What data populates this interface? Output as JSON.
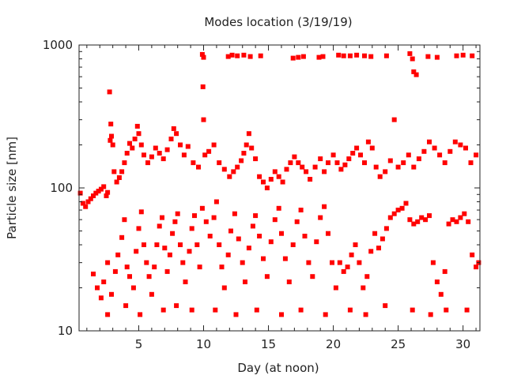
{
  "chart_data": {
    "type": "scatter",
    "title": "Modes location (3/19/19)",
    "xlabel": "Day (at noon)",
    "ylabel": "Particle size [nm]",
    "xlim": [
      0.4,
      31.3
    ],
    "ylim": [
      10,
      1000
    ],
    "yscale": "log",
    "grid": false,
    "legend": "none",
    "marker_color": "#ff0000",
    "x_ticks": [
      {
        "value": 5,
        "label": "5"
      },
      {
        "value": 10,
        "label": "10"
      },
      {
        "value": 15,
        "label": "15"
      },
      {
        "value": 20,
        "label": "20"
      },
      {
        "value": 25,
        "label": "25"
      },
      {
        "value": 30,
        "label": "30"
      }
    ],
    "y_ticks": [
      {
        "value": 10,
        "label": "10"
      },
      {
        "value": 100,
        "label": "100"
      },
      {
        "value": 1000,
        "label": "1000"
      }
    ],
    "series": [
      {
        "values_description_note": "",
        "points": [
          [
            0.5,
            92
          ],
          [
            0.7,
            78
          ],
          [
            0.9,
            74
          ],
          [
            1.1,
            80
          ],
          [
            1.3,
            84
          ],
          [
            1.5,
            88
          ],
          [
            1.7,
            92
          ],
          [
            1.9,
            95
          ],
          [
            2.1,
            98
          ],
          [
            2.3,
            102
          ],
          [
            2.5,
            88
          ],
          [
            2.6,
            93
          ],
          [
            2.75,
            470
          ],
          [
            2.8,
            215
          ],
          [
            2.85,
            280
          ],
          [
            2.9,
            230
          ],
          [
            3.0,
            200
          ],
          [
            3.1,
            130
          ],
          [
            3.3,
            110
          ],
          [
            3.5,
            118
          ],
          [
            3.7,
            130
          ],
          [
            3.9,
            150
          ],
          [
            4.1,
            175
          ],
          [
            4.3,
            205
          ],
          [
            4.5,
            190
          ],
          [
            4.7,
            220
          ],
          [
            4.9,
            270
          ],
          [
            5.0,
            240
          ],
          [
            5.2,
            200
          ],
          [
            5.4,
            170
          ],
          [
            5.7,
            150
          ],
          [
            6.0,
            165
          ],
          [
            6.3,
            190
          ],
          [
            6.6,
            175
          ],
          [
            6.9,
            160
          ],
          [
            7.2,
            185
          ],
          [
            7.5,
            220
          ],
          [
            7.7,
            260
          ],
          [
            7.9,
            240
          ],
          [
            8.2,
            200
          ],
          [
            8.5,
            170
          ],
          [
            8.8,
            195
          ],
          [
            9.2,
            150
          ],
          [
            9.6,
            140
          ],
          [
            9.95,
            510
          ],
          [
            10.0,
            300
          ],
          [
            10.1,
            170
          ],
          [
            10.4,
            180
          ],
          [
            10.8,
            200
          ],
          [
            11.2,
            150
          ],
          [
            11.6,
            135
          ],
          [
            12.0,
            120
          ],
          [
            12.3,
            130
          ],
          [
            12.6,
            140
          ],
          [
            12.9,
            155
          ],
          [
            13.1,
            175
          ],
          [
            13.3,
            200
          ],
          [
            13.5,
            240
          ],
          [
            13.7,
            190
          ],
          [
            14.0,
            160
          ],
          [
            14.3,
            120
          ],
          [
            14.6,
            110
          ],
          [
            14.9,
            100
          ],
          [
            15.2,
            115
          ],
          [
            15.5,
            130
          ],
          [
            15.8,
            120
          ],
          [
            16.1,
            110
          ],
          [
            16.4,
            135
          ],
          [
            16.7,
            150
          ],
          [
            17.0,
            165
          ],
          [
            17.3,
            150
          ],
          [
            17.6,
            140
          ],
          [
            17.9,
            130
          ],
          [
            18.2,
            115
          ],
          [
            18.6,
            140
          ],
          [
            19.0,
            160
          ],
          [
            19.3,
            130
          ],
          [
            19.6,
            150
          ],
          [
            20.0,
            170
          ],
          [
            20.3,
            150
          ],
          [
            20.6,
            135
          ],
          [
            20.9,
            145
          ],
          [
            21.2,
            160
          ],
          [
            21.5,
            175
          ],
          [
            21.8,
            190
          ],
          [
            22.1,
            170
          ],
          [
            22.4,
            150
          ],
          [
            22.7,
            210
          ],
          [
            23.0,
            190
          ],
          [
            23.3,
            140
          ],
          [
            23.6,
            120
          ],
          [
            24.0,
            130
          ],
          [
            24.4,
            155
          ],
          [
            24.7,
            300
          ],
          [
            25.0,
            140
          ],
          [
            25.4,
            150
          ],
          [
            25.8,
            170
          ],
          [
            26.2,
            140
          ],
          [
            26.6,
            160
          ],
          [
            27.0,
            180
          ],
          [
            27.4,
            210
          ],
          [
            27.8,
            190
          ],
          [
            28.2,
            170
          ],
          [
            28.6,
            150
          ],
          [
            29.0,
            180
          ],
          [
            29.4,
            210
          ],
          [
            29.8,
            200
          ],
          [
            30.2,
            190
          ],
          [
            30.6,
            150
          ],
          [
            31.0,
            170
          ],
          [
            1.5,
            25
          ],
          [
            1.8,
            20
          ],
          [
            2.1,
            17
          ],
          [
            2.3,
            22
          ],
          [
            2.6,
            30
          ],
          [
            2.9,
            18
          ],
          [
            3.2,
            26
          ],
          [
            3.4,
            34
          ],
          [
            3.7,
            45
          ],
          [
            3.9,
            60
          ],
          [
            4.1,
            28
          ],
          [
            4.3,
            24
          ],
          [
            4.6,
            20
          ],
          [
            4.8,
            36
          ],
          [
            5.0,
            52
          ],
          [
            5.2,
            68
          ],
          [
            5.4,
            40
          ],
          [
            5.6,
            30
          ],
          [
            5.8,
            24
          ],
          [
            6.0,
            18
          ],
          [
            6.2,
            28
          ],
          [
            6.4,
            40
          ],
          [
            6.6,
            54
          ],
          [
            6.8,
            62
          ],
          [
            7.0,
            38
          ],
          [
            7.2,
            26
          ],
          [
            7.4,
            34
          ],
          [
            7.6,
            48
          ],
          [
            7.8,
            58
          ],
          [
            8.0,
            66
          ],
          [
            8.2,
            40
          ],
          [
            8.4,
            30
          ],
          [
            8.6,
            22
          ],
          [
            8.9,
            36
          ],
          [
            9.1,
            52
          ],
          [
            9.3,
            64
          ],
          [
            9.5,
            40
          ],
          [
            9.7,
            28
          ],
          [
            9.9,
            72
          ],
          [
            10.2,
            58
          ],
          [
            10.5,
            46
          ],
          [
            10.8,
            62
          ],
          [
            11.0,
            80
          ],
          [
            11.2,
            40
          ],
          [
            11.4,
            28
          ],
          [
            11.6,
            20
          ],
          [
            11.9,
            34
          ],
          [
            12.1,
            50
          ],
          [
            12.4,
            66
          ],
          [
            12.7,
            44
          ],
          [
            13.0,
            30
          ],
          [
            13.2,
            22
          ],
          [
            13.5,
            38
          ],
          [
            13.8,
            54
          ],
          [
            14.0,
            64
          ],
          [
            14.3,
            46
          ],
          [
            14.6,
            32
          ],
          [
            14.9,
            24
          ],
          [
            15.2,
            42
          ],
          [
            15.5,
            60
          ],
          [
            15.8,
            72
          ],
          [
            16.0,
            48
          ],
          [
            16.3,
            32
          ],
          [
            16.6,
            22
          ],
          [
            16.9,
            40
          ],
          [
            17.2,
            58
          ],
          [
            17.5,
            70
          ],
          [
            17.8,
            46
          ],
          [
            18.1,
            30
          ],
          [
            18.4,
            24
          ],
          [
            18.7,
            42
          ],
          [
            19.0,
            62
          ],
          [
            19.3,
            74
          ],
          [
            19.6,
            48
          ],
          [
            19.9,
            30
          ],
          [
            20.2,
            20
          ],
          [
            20.5,
            30
          ],
          [
            20.8,
            26
          ],
          [
            21.1,
            28
          ],
          [
            21.4,
            34
          ],
          [
            21.7,
            40
          ],
          [
            22.0,
            30
          ],
          [
            22.3,
            20
          ],
          [
            22.6,
            24
          ],
          [
            22.9,
            36
          ],
          [
            23.2,
            48
          ],
          [
            23.5,
            38
          ],
          [
            23.8,
            44
          ],
          [
            24.1,
            52
          ],
          [
            24.4,
            62
          ],
          [
            24.7,
            66
          ],
          [
            25.0,
            70
          ],
          [
            25.3,
            72
          ],
          [
            25.6,
            78
          ],
          [
            25.9,
            60
          ],
          [
            26.2,
            56
          ],
          [
            26.5,
            58
          ],
          [
            26.8,
            62
          ],
          [
            27.1,
            60
          ],
          [
            27.4,
            64
          ],
          [
            27.7,
            30
          ],
          [
            28.0,
            22
          ],
          [
            28.3,
            18
          ],
          [
            28.6,
            26
          ],
          [
            28.9,
            56
          ],
          [
            29.2,
            60
          ],
          [
            29.5,
            58
          ],
          [
            29.8,
            62
          ],
          [
            30.1,
            66
          ],
          [
            30.4,
            58
          ],
          [
            30.7,
            34
          ],
          [
            31.0,
            28
          ],
          [
            31.2,
            30
          ],
          [
            2.6,
            13
          ],
          [
            4.0,
            15
          ],
          [
            5.1,
            13
          ],
          [
            6.9,
            14
          ],
          [
            7.9,
            15
          ],
          [
            9.1,
            14
          ],
          [
            10.9,
            14
          ],
          [
            12.5,
            13
          ],
          [
            14.1,
            14
          ],
          [
            16.0,
            13
          ],
          [
            17.5,
            14
          ],
          [
            19.4,
            13
          ],
          [
            21.3,
            14
          ],
          [
            22.5,
            13
          ],
          [
            24.0,
            15
          ],
          [
            26.1,
            14
          ],
          [
            27.5,
            13
          ],
          [
            28.7,
            14
          ],
          [
            30.3,
            14
          ],
          [
            9.9,
            860
          ],
          [
            10.0,
            820
          ],
          [
            11.9,
            830
          ],
          [
            12.2,
            850
          ],
          [
            12.6,
            840
          ],
          [
            13.1,
            850
          ],
          [
            13.6,
            830
          ],
          [
            14.4,
            840
          ],
          [
            16.9,
            810
          ],
          [
            17.3,
            820
          ],
          [
            17.7,
            830
          ],
          [
            18.9,
            820
          ],
          [
            19.2,
            830
          ],
          [
            20.4,
            850
          ],
          [
            20.8,
            840
          ],
          [
            21.3,
            840
          ],
          [
            21.8,
            850
          ],
          [
            22.4,
            840
          ],
          [
            22.9,
            830
          ],
          [
            24.1,
            840
          ],
          [
            25.9,
            870
          ],
          [
            26.1,
            800
          ],
          [
            26.2,
            650
          ],
          [
            26.4,
            620
          ],
          [
            27.3,
            830
          ],
          [
            28.0,
            820
          ],
          [
            29.5,
            840
          ],
          [
            30.0,
            850
          ],
          [
            30.7,
            840
          ]
        ]
      }
    ]
  }
}
